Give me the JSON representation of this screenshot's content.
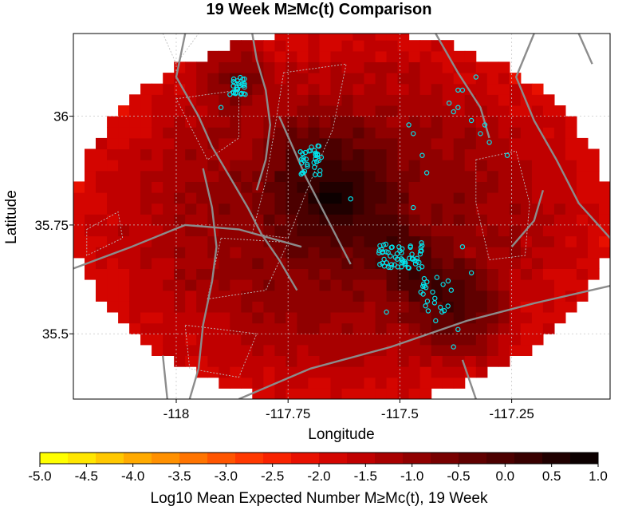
{
  "chart_data": {
    "type": "heatmap",
    "title": "19 Week M≥Mc(t) Comparison",
    "xlabel": "Longitude",
    "ylabel": "Latitude",
    "xlim": [
      -118.23,
      -117.03
    ],
    "ylim": [
      35.35,
      36.19
    ],
    "x_ticks": [
      -118,
      -117.75,
      -117.5,
      -117.25
    ],
    "x_tick_labels": [
      "-118",
      "-117.75",
      "-117.5",
      "-117.25"
    ],
    "y_ticks": [
      35.5,
      35.75,
      36
    ],
    "y_tick_labels": [
      "35.5",
      "35.75",
      "36"
    ],
    "grid": true,
    "colorbar": {
      "label": "Log10 Mean Expected Number M≥Mc(t), 19 Week",
      "min": -5.0,
      "max": 1.0,
      "ticks": [
        -5.0,
        -4.5,
        -4.0,
        -3.5,
        -3.0,
        -2.5,
        -2.0,
        -1.5,
        -1.0,
        -0.5,
        0.0,
        0.5,
        1.0
      ],
      "tick_labels": [
        "-5.0",
        "-4.5",
        "-4.0",
        "-3.5",
        "-3.0",
        "-2.5",
        "-2.0",
        "-1.5",
        "-1.0",
        "-0.5",
        "0.0",
        "0.5",
        "1.0"
      ],
      "colors": [
        "#ffff00",
        "#ffe600",
        "#ffc800",
        "#ffaa00",
        "#ff9000",
        "#ff7400",
        "#ff5500",
        "#ff3800",
        "#f82200",
        "#e81000",
        "#d40500",
        "#c00000",
        "#a80000",
        "#900000",
        "#780000",
        "#600000",
        "#4c0000",
        "#380000",
        "#200000",
        "#0c0000"
      ]
    },
    "field": {
      "cell_size_deg": 0.025,
      "region_center": [
        -117.63,
        35.77
      ],
      "region_radius_deg": [
        0.6,
        0.43
      ],
      "background_value": -1.9,
      "hotspot": {
        "lon": -117.65,
        "lat": 35.82,
        "peak": 0.8
      },
      "rupture_band": {
        "from": [
          -117.72,
          35.9
        ],
        "to": [
          -117.38,
          35.57
        ],
        "value": 0.2
      },
      "cluster_nw": {
        "lon": -117.86,
        "lat": 36.07,
        "value": -0.4
      }
    },
    "earthquakes": {
      "marker_color": "#00e5ee",
      "clusters": [
        {
          "lon": -117.86,
          "lat": 36.07,
          "spread_lon": 0.015,
          "spread_lat": 0.02,
          "count": 26
        },
        {
          "lon": -117.7,
          "lat": 35.9,
          "spread_lon": 0.025,
          "spread_lat": 0.035,
          "count": 34
        },
        {
          "lon": -117.5,
          "lat": 35.68,
          "spread_lon": 0.05,
          "spread_lat": 0.03,
          "count": 60
        },
        {
          "lon": -117.42,
          "lat": 35.59,
          "spread_lon": 0.035,
          "spread_lat": 0.04,
          "count": 22
        }
      ],
      "scattered": [
        [
          -117.9,
          36.02
        ],
        [
          -117.88,
          36.05
        ],
        [
          -117.61,
          35.81
        ],
        [
          -117.48,
          35.98
        ],
        [
          -117.47,
          35.96
        ],
        [
          -117.45,
          35.91
        ],
        [
          -117.44,
          35.87
        ],
        [
          -117.39,
          36.03
        ],
        [
          -117.38,
          36.01
        ],
        [
          -117.37,
          36.02
        ],
        [
          -117.37,
          36.06
        ],
        [
          -117.36,
          36.06
        ],
        [
          -117.34,
          35.99
        ],
        [
          -117.32,
          35.96
        ],
        [
          -117.31,
          35.98
        ],
        [
          -117.3,
          35.94
        ],
        [
          -117.33,
          36.09
        ],
        [
          -117.26,
          35.91
        ],
        [
          -117.36,
          35.7
        ],
        [
          -117.34,
          35.64
        ],
        [
          -117.37,
          35.51
        ],
        [
          -117.38,
          35.47
        ],
        [
          -117.42,
          35.53
        ],
        [
          -117.53,
          35.55
        ],
        [
          -117.47,
          35.79
        ]
      ]
    },
    "faults": [
      [
        [
          -117.98,
          36.19
        ],
        [
          -118.0,
          36.09
        ],
        [
          -117.95,
          36.0
        ],
        [
          -117.92,
          35.93
        ],
        [
          -117.88,
          35.86
        ],
        [
          -117.84,
          35.79
        ],
        [
          -117.81,
          35.73
        ],
        [
          -117.77,
          35.67
        ],
        [
          -117.73,
          35.6
        ]
      ],
      [
        [
          -117.83,
          36.19
        ],
        [
          -117.82,
          36.13
        ],
        [
          -117.8,
          36.06
        ],
        [
          -117.79,
          35.98
        ],
        [
          -117.8,
          35.9
        ],
        [
          -117.82,
          35.83
        ]
      ],
      [
        [
          -117.77,
          36.0
        ],
        [
          -117.71,
          35.86
        ],
        [
          -117.66,
          35.76
        ],
        [
          -117.61,
          35.66
        ]
      ],
      [
        [
          -117.94,
          35.88
        ],
        [
          -117.92,
          35.79
        ],
        [
          -117.91,
          35.7
        ],
        [
          -117.92,
          35.62
        ],
        [
          -117.94,
          35.52
        ],
        [
          -117.95,
          35.42
        ],
        [
          -117.97,
          35.35
        ]
      ],
      [
        [
          -118.23,
          35.65
        ],
        [
          -118.1,
          35.7
        ],
        [
          -117.98,
          35.75
        ],
        [
          -117.86,
          35.74
        ],
        [
          -117.72,
          35.7
        ]
      ],
      [
        [
          -117.86,
          35.35
        ],
        [
          -117.7,
          35.42
        ],
        [
          -117.52,
          35.47
        ],
        [
          -117.35,
          35.53
        ],
        [
          -117.2,
          35.57
        ],
        [
          -117.03,
          35.61
        ]
      ],
      [
        [
          -117.42,
          36.19
        ],
        [
          -117.37,
          36.1
        ],
        [
          -117.32,
          36.02
        ],
        [
          -117.3,
          35.95
        ]
      ],
      [
        [
          -117.2,
          36.19
        ],
        [
          -117.24,
          36.09
        ],
        [
          -117.2,
          35.99
        ],
        [
          -117.15,
          35.9
        ],
        [
          -117.1,
          35.8
        ],
        [
          -117.03,
          35.72
        ]
      ],
      [
        [
          -117.1,
          36.19
        ],
        [
          -117.07,
          36.12
        ]
      ],
      [
        [
          -117.18,
          35.83
        ],
        [
          -117.2,
          35.76
        ],
        [
          -117.25,
          35.7
        ]
      ],
      [
        [
          -117.33,
          35.35
        ],
        [
          -117.36,
          35.44
        ]
      ],
      [
        [
          -118.02,
          35.35
        ],
        [
          -118.03,
          35.45
        ]
      ]
    ],
    "fault_blocks": [
      [
        [
          -117.76,
          36.1
        ],
        [
          -117.62,
          36.12
        ],
        [
          -117.65,
          35.97
        ],
        [
          -117.7,
          35.85
        ],
        [
          -117.75,
          35.72
        ],
        [
          -117.83,
          35.73
        ],
        [
          -117.8,
          35.85
        ],
        [
          -117.78,
          35.97
        ]
      ],
      [
        [
          -118.0,
          36.04
        ],
        [
          -117.86,
          36.06
        ],
        [
          -117.86,
          35.95
        ],
        [
          -117.93,
          35.9
        ]
      ],
      [
        [
          -117.33,
          35.9
        ],
        [
          -117.24,
          35.92
        ],
        [
          -117.21,
          35.8
        ],
        [
          -117.22,
          35.68
        ],
        [
          -117.3,
          35.67
        ],
        [
          -117.33,
          35.8
        ]
      ],
      [
        [
          -118.2,
          35.74
        ],
        [
          -118.13,
          35.78
        ],
        [
          -118.12,
          35.72
        ],
        [
          -118.2,
          35.68
        ]
      ],
      [
        [
          -117.9,
          35.72
        ],
        [
          -117.75,
          35.71
        ],
        [
          -117.8,
          35.6
        ],
        [
          -117.93,
          35.58
        ]
      ],
      [
        [
          -117.98,
          35.52
        ],
        [
          -117.82,
          35.5
        ],
        [
          -117.86,
          35.4
        ],
        [
          -117.97,
          35.42
        ]
      ],
      [
        [
          -118.03,
          36.19
        ],
        [
          -118.0,
          36.12
        ],
        [
          -117.95,
          36.19
        ]
      ]
    ]
  }
}
